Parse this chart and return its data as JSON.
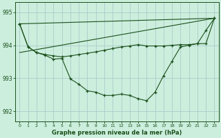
{
  "xlabel": "Graphe pression niveau de la mer (hPa)",
  "background_color": "#cceedd",
  "grid_color": "#aacccc",
  "line_color": "#1a4f1a",
  "ylim": [
    991.7,
    995.3
  ],
  "yticks": [
    992,
    993,
    994,
    995
  ],
  "ytick_labels": [
    "992",
    "993",
    "994",
    "995"
  ],
  "x_ticks": [
    0,
    1,
    2,
    3,
    4,
    5,
    6,
    7,
    8,
    9,
    10,
    11,
    12,
    13,
    14,
    15,
    16,
    17,
    18,
    19,
    20,
    21,
    22,
    23
  ],
  "series_main": [
    994.65,
    993.95,
    993.78,
    993.7,
    993.58,
    993.6,
    992.98,
    992.82,
    992.62,
    992.58,
    992.48,
    992.48,
    992.52,
    992.48,
    992.38,
    992.32,
    992.58,
    993.08,
    993.52,
    993.95,
    994.0,
    994.05,
    994.45,
    994.82
  ],
  "series_upper": [
    994.65,
    993.95,
    993.78,
    993.72,
    993.68,
    993.65,
    993.68,
    993.72,
    993.76,
    993.8,
    993.85,
    993.9,
    993.95,
    993.98,
    994.02,
    993.98,
    993.98,
    993.98,
    994.0,
    994.02,
    994.02,
    994.05,
    994.05,
    994.82
  ],
  "line1_x": [
    0,
    23
  ],
  "line1_y": [
    994.65,
    994.82
  ],
  "line2_x": [
    0,
    23
  ],
  "line2_y": [
    993.78,
    994.82
  ]
}
